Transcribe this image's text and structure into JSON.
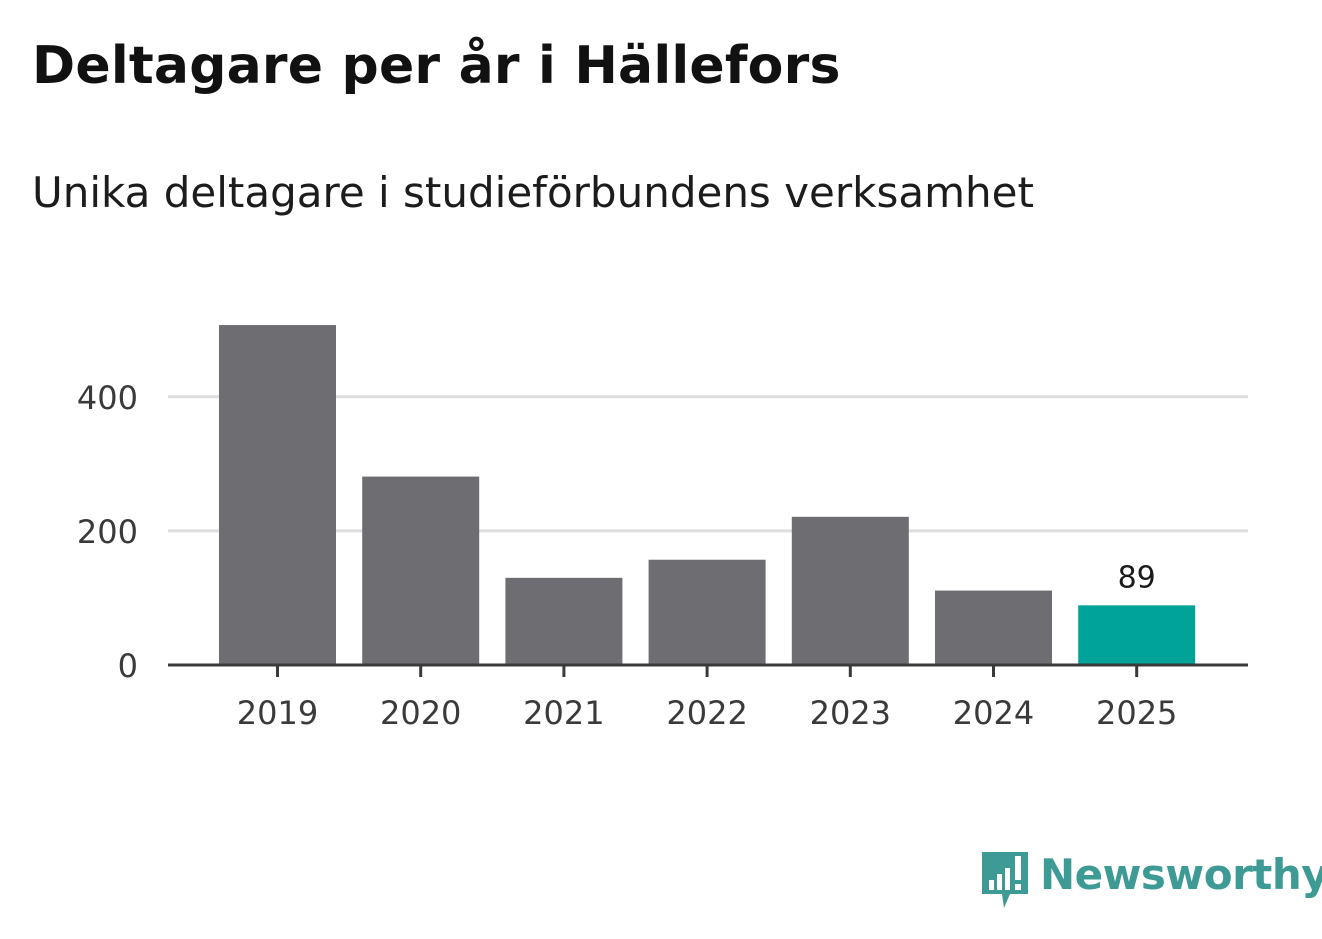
{
  "header": {
    "title": "Deltagare per år i Hällefors",
    "subtitle": "Unika deltagare i studieförbundens verksamhet"
  },
  "colors": {
    "bar": "#6e6d72",
    "highlight": "#00a398",
    "grid": "#dddddd",
    "axis": "#3a3a3a",
    "brand": "#3d9a94"
  },
  "chart_data": {
    "type": "bar",
    "title": "Deltagare per år i Hällefors",
    "subtitle": "Unika deltagare i studieförbundens verksamhet",
    "xlabel": "",
    "ylabel": "",
    "categories": [
      "2019",
      "2020",
      "2021",
      "2022",
      "2023",
      "2024",
      "2025"
    ],
    "values": [
      507,
      281,
      130,
      157,
      221,
      111,
      89
    ],
    "ylim": [
      0,
      530
    ],
    "yticks": [
      0,
      200,
      400
    ],
    "grid": true,
    "highlight_index": 6,
    "data_labels": [
      {
        "index": 6,
        "text": "89"
      }
    ]
  },
  "brand": {
    "logo_text": "Newsworthy"
  }
}
